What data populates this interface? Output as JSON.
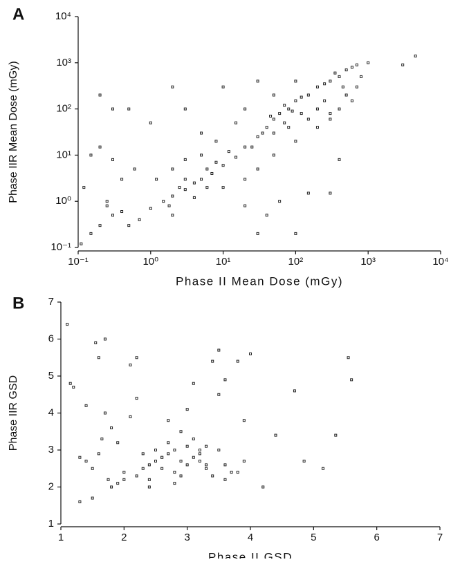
{
  "chart_data": [
    {
      "type": "scatter",
      "label": "A",
      "xlabel": "Phase II Mean Dose (mGy)",
      "ylabel": "Phase IIR Mean Dose (mGy)",
      "log_scale": true,
      "color": "#222222",
      "xlim": [
        0.1,
        10000
      ],
      "ylim": [
        0.1,
        10000
      ],
      "xticks": [
        {
          "value": 0.1,
          "label": "10⁻¹"
        },
        {
          "value": 1,
          "label": "10⁰"
        },
        {
          "value": 10,
          "label": "10¹"
        },
        {
          "value": 100,
          "label": "10²"
        },
        {
          "value": 1000,
          "label": "10³"
        },
        {
          "value": 10000,
          "label": "10⁴"
        }
      ],
      "yticks": [
        {
          "value": 0.1,
          "label": "10⁻¹"
        },
        {
          "value": 1,
          "label": "10⁰"
        },
        {
          "value": 10,
          "label": "10¹"
        },
        {
          "value": 100,
          "label": "10²"
        },
        {
          "value": 1000,
          "label": "10³"
        },
        {
          "value": 10000,
          "label": "10⁴"
        }
      ],
      "x": [
        1,
        1.5,
        2,
        3,
        4,
        5,
        7,
        10,
        15,
        20,
        30,
        40,
        50,
        60,
        80,
        100,
        150,
        200,
        300,
        400,
        500,
        700,
        1000,
        3000,
        4500,
        0.2,
        0.3,
        0.5,
        1,
        2,
        3,
        5,
        10,
        20,
        30,
        5,
        2,
        8,
        15,
        50,
        100,
        70,
        200,
        300,
        500,
        700,
        0.15,
        0.2,
        0.3,
        0.4,
        0.25,
        0.3,
        0.2,
        0.15,
        0.5,
        0.4,
        0.12,
        0.6,
        1.2,
        3,
        6,
        10,
        20,
        30,
        50,
        100,
        200,
        300,
        400,
        600,
        50,
        80,
        120,
        150,
        250,
        20,
        40,
        60,
        150,
        300,
        400,
        100,
        30,
        2,
        4,
        3,
        6,
        8,
        12,
        25,
        35,
        45,
        70,
        90,
        120,
        250,
        350,
        450,
        600,
        800,
        0.25,
        0.7,
        1.8,
        2.5,
        0.11
      ],
      "values": [
        0.7,
        1,
        1.3,
        1.8,
        2.5,
        3,
        4,
        6,
        9,
        15,
        25,
        40,
        60,
        80,
        100,
        150,
        200,
        300,
        400,
        500,
        700,
        900,
        1000,
        900,
        1400,
        200,
        100,
        100,
        50,
        300,
        100,
        30,
        300,
        100,
        400,
        10,
        5,
        20,
        50,
        200,
        400,
        50,
        100,
        80,
        200,
        300,
        10,
        15,
        8,
        3,
        1,
        0.5,
        0.3,
        0.2,
        0.3,
        0.6,
        2,
        5,
        3,
        8,
        2,
        2,
        3,
        5,
        10,
        20,
        40,
        60,
        100,
        150,
        30,
        40,
        80,
        60,
        150,
        0.8,
        0.5,
        1,
        1.5,
        1.5,
        8,
        0.2,
        0.2,
        0.5,
        1.2,
        3,
        5,
        7,
        12,
        15,
        30,
        70,
        120,
        90,
        180,
        350,
        600,
        300,
        800,
        500,
        0.8,
        0.4,
        0.8,
        2,
        0.12
      ]
    },
    {
      "type": "scatter",
      "label": "B",
      "xlabel": "Phase II GSD",
      "ylabel": "Phase IIR GSD",
      "log_scale": false,
      "color": "#222222",
      "xlim": [
        1,
        7
      ],
      "ylim": [
        1,
        7
      ],
      "xticks": [
        1,
        2,
        3,
        4,
        5,
        6,
        7
      ],
      "yticks": [
        1,
        2,
        3,
        4,
        5,
        6,
        7
      ],
      "x": [
        1.1,
        1.15,
        1.2,
        1.3,
        1.4,
        1.5,
        1.55,
        1.6,
        1.65,
        1.7,
        1.8,
        1.9,
        2.0,
        2.1,
        2.2,
        2.3,
        2.4,
        2.5,
        2.6,
        2.7,
        2.8,
        2.9,
        3.0,
        3.1,
        3.2,
        3.3,
        3.4,
        3.5,
        3.6,
        3.7,
        3.8,
        3.9,
        4.0,
        4.2,
        4.4,
        4.7,
        4.85,
        5.15,
        5.35,
        5.55,
        5.6,
        1.5,
        1.6,
        1.75,
        1.9,
        2.0,
        2.2,
        2.4,
        2.6,
        2.8,
        3.0,
        3.2,
        3.4,
        3.6,
        3.8,
        2.5,
        2.7,
        2.9,
        3.1,
        3.3,
        2.3,
        2.6,
        2.9,
        3.2,
        3.5,
        1.4,
        1.7,
        2.1,
        2.7,
        3.1,
        3.5,
        3.9,
        2.2,
        3.0,
        3.6,
        1.3,
        1.8,
        2.4,
        2.8,
        3.3
      ],
      "values": [
        6.4,
        4.8,
        4.7,
        1.6,
        4.2,
        1.7,
        5.9,
        5.5,
        3.3,
        6.0,
        2.0,
        2.1,
        2.2,
        5.3,
        5.5,
        2.5,
        2.6,
        2.7,
        2.8,
        2.9,
        3.0,
        2.7,
        2.6,
        2.8,
        2.7,
        2.5,
        5.4,
        5.7,
        2.6,
        2.4,
        5.4,
        2.7,
        5.6,
        2.0,
        3.4,
        4.6,
        2.7,
        2.5,
        3.4,
        5.5,
        4.9,
        2.5,
        2.9,
        2.2,
        3.2,
        2.4,
        2.3,
        2.2,
        2.5,
        2.4,
        3.1,
        3.0,
        2.3,
        2.2,
        2.4,
        3.0,
        3.2,
        2.3,
        3.3,
        3.1,
        2.9,
        2.8,
        3.5,
        2.9,
        3.0,
        2.7,
        4.0,
        3.9,
        3.8,
        4.8,
        4.5,
        3.8,
        4.4,
        4.1,
        4.9,
        2.8,
        3.6,
        2.0,
        2.1,
        2.6
      ]
    }
  ]
}
